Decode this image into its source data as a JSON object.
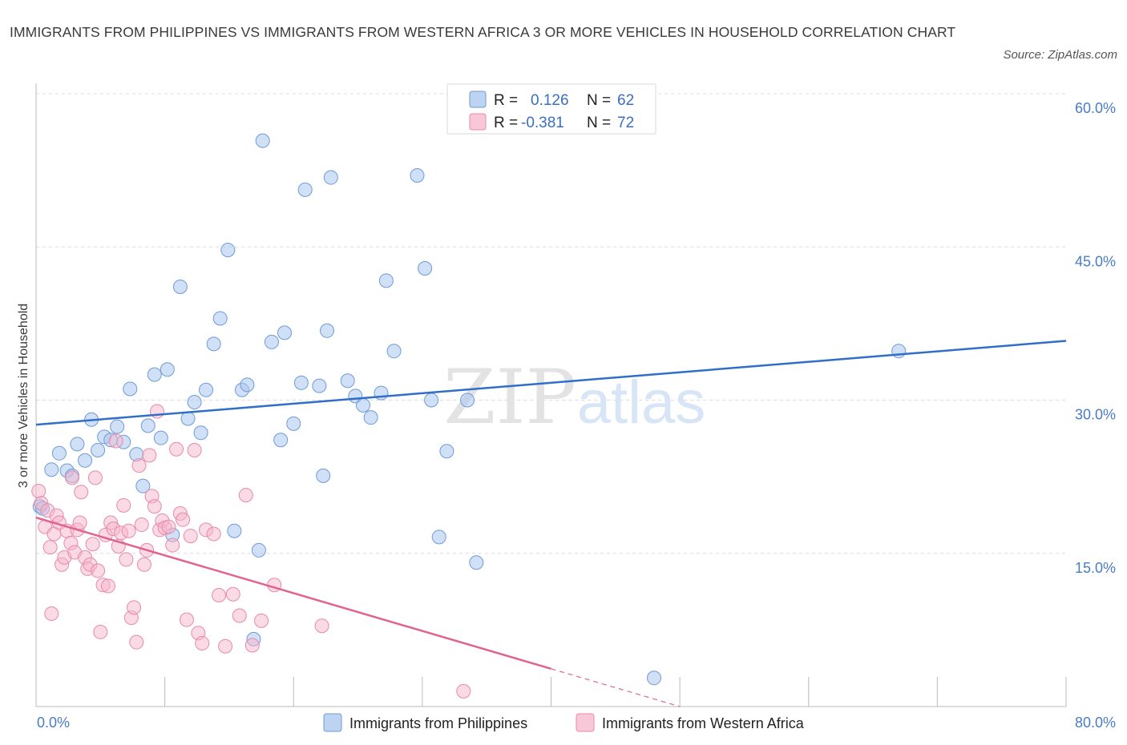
{
  "title": "IMMIGRANTS FROM PHILIPPINES VS IMMIGRANTS FROM WESTERN AFRICA 3 OR MORE VEHICLES IN HOUSEHOLD CORRELATION CHART",
  "source": "Source: ZipAtlas.com",
  "watermark": {
    "zip": "ZIP",
    "atlas": "atlas"
  },
  "legend": {
    "rows": [
      {
        "r_label": "R =",
        "r_value": "0.126",
        "n_label": "N =",
        "n_value": "62"
      },
      {
        "r_label": "R =",
        "r_value": "-0.381",
        "n_label": "N =",
        "n_value": "72"
      }
    ]
  },
  "colors": {
    "blue_fill": "#a9c6ee",
    "blue_stroke": "#6f9bd8",
    "blue_line": "#2f6fc8",
    "pink_fill": "#f6b6cb",
    "pink_stroke": "#e88aa8",
    "pink_line": "#e0648f",
    "tick_text": "#4a7cc4",
    "grid": "#dcdcdc"
  },
  "chart_data": {
    "type": "scatter",
    "title": "IMMIGRANTS FROM PHILIPPINES VS IMMIGRANTS FROM WESTERN AFRICA 3 OR MORE VEHICLES IN HOUSEHOLD CORRELATION CHART",
    "xlabel": "",
    "ylabel": "3 or more Vehicles in Household",
    "xlim": [
      0,
      80
    ],
    "ylim": [
      0,
      60
    ],
    "x_tick_labels": [
      "0.0%",
      "80.0%"
    ],
    "y_ticks": [
      15,
      30,
      45,
      60
    ],
    "y_tick_labels": [
      "15.0%",
      "30.0%",
      "45.0%",
      "60.0%"
    ],
    "grid": true,
    "legend_position": "bottom-center",
    "series": [
      {
        "name": "Immigrants from Philippines",
        "color": "#6f9bd8",
        "trend": {
          "x": [
            0,
            80
          ],
          "y": [
            27.6,
            35.8
          ]
        },
        "points": [
          [
            0.3,
            19.6
          ],
          [
            0.5,
            19.4
          ],
          [
            1.2,
            23.2
          ],
          [
            1.8,
            24.8
          ],
          [
            2.4,
            23.1
          ],
          [
            2.8,
            22.6
          ],
          [
            3.2,
            25.7
          ],
          [
            3.8,
            24.1
          ],
          [
            4.3,
            28.1
          ],
          [
            4.8,
            25.1
          ],
          [
            5.3,
            26.4
          ],
          [
            5.8,
            26.1
          ],
          [
            6.3,
            27.4
          ],
          [
            6.8,
            25.9
          ],
          [
            7.3,
            31.1
          ],
          [
            7.8,
            24.7
          ],
          [
            8.3,
            21.6
          ],
          [
            8.7,
            27.5
          ],
          [
            9.2,
            32.5
          ],
          [
            9.7,
            26.3
          ],
          [
            10.2,
            33.0
          ],
          [
            10.6,
            16.8
          ],
          [
            11.2,
            41.1
          ],
          [
            11.8,
            28.2
          ],
          [
            12.3,
            29.8
          ],
          [
            12.8,
            26.8
          ],
          [
            13.2,
            31.0
          ],
          [
            13.8,
            35.5
          ],
          [
            14.3,
            38.0
          ],
          [
            14.9,
            44.7
          ],
          [
            15.4,
            17.2
          ],
          [
            16.0,
            31.0
          ],
          [
            16.4,
            31.5
          ],
          [
            16.9,
            6.6
          ],
          [
            17.3,
            15.3
          ],
          [
            17.6,
            55.4
          ],
          [
            18.3,
            35.7
          ],
          [
            19.0,
            26.1
          ],
          [
            19.3,
            36.6
          ],
          [
            20.0,
            27.7
          ],
          [
            20.6,
            31.7
          ],
          [
            20.9,
            50.6
          ],
          [
            22.0,
            31.4
          ],
          [
            22.3,
            22.6
          ],
          [
            22.6,
            36.8
          ],
          [
            22.9,
            51.8
          ],
          [
            24.2,
            31.9
          ],
          [
            24.8,
            30.4
          ],
          [
            25.4,
            29.5
          ],
          [
            26.0,
            28.3
          ],
          [
            26.8,
            30.7
          ],
          [
            27.2,
            41.7
          ],
          [
            27.8,
            34.8
          ],
          [
            29.6,
            52.0
          ],
          [
            30.2,
            42.9
          ],
          [
            30.7,
            30.0
          ],
          [
            31.3,
            16.6
          ],
          [
            31.9,
            25.0
          ],
          [
            33.5,
            30.0
          ],
          [
            34.2,
            14.1
          ],
          [
            48.0,
            2.8
          ],
          [
            67.0,
            34.8
          ]
        ]
      },
      {
        "name": "Immigrants from Western Africa",
        "color": "#e88aa8",
        "trend": {
          "x": [
            0,
            40
          ],
          "y": [
            18.5,
            3.7
          ]
        },
        "trend_dashed": {
          "x": [
            40,
            50
          ],
          "y": [
            3.7,
            0
          ]
        },
        "points": [
          [
            0.2,
            21.1
          ],
          [
            0.4,
            19.9
          ],
          [
            0.7,
            17.6
          ],
          [
            0.9,
            19.2
          ],
          [
            1.1,
            15.6
          ],
          [
            1.2,
            9.1
          ],
          [
            1.4,
            16.9
          ],
          [
            1.6,
            18.7
          ],
          [
            1.8,
            18.0
          ],
          [
            2.0,
            13.9
          ],
          [
            2.2,
            14.6
          ],
          [
            2.4,
            17.2
          ],
          [
            2.7,
            16.0
          ],
          [
            2.8,
            22.4
          ],
          [
            3.0,
            15.1
          ],
          [
            3.2,
            17.3
          ],
          [
            3.4,
            18.0
          ],
          [
            3.5,
            21.0
          ],
          [
            3.8,
            14.6
          ],
          [
            4.0,
            13.5
          ],
          [
            4.2,
            13.9
          ],
          [
            4.4,
            15.9
          ],
          [
            4.6,
            22.4
          ],
          [
            4.8,
            13.3
          ],
          [
            5.0,
            7.3
          ],
          [
            5.2,
            11.9
          ],
          [
            5.4,
            16.8
          ],
          [
            5.6,
            11.8
          ],
          [
            5.8,
            18.0
          ],
          [
            6.0,
            17.4
          ],
          [
            6.2,
            26.0
          ],
          [
            6.4,
            15.7
          ],
          [
            6.6,
            17.0
          ],
          [
            6.8,
            19.7
          ],
          [
            7.0,
            14.4
          ],
          [
            7.2,
            17.2
          ],
          [
            7.4,
            8.7
          ],
          [
            7.6,
            9.7
          ],
          [
            7.8,
            6.3
          ],
          [
            8.0,
            23.6
          ],
          [
            8.2,
            17.8
          ],
          [
            8.4,
            13.9
          ],
          [
            8.6,
            15.3
          ],
          [
            8.8,
            24.6
          ],
          [
            9.0,
            20.6
          ],
          [
            9.2,
            19.6
          ],
          [
            9.4,
            28.9
          ],
          [
            9.6,
            17.3
          ],
          [
            9.8,
            18.2
          ],
          [
            10.0,
            17.5
          ],
          [
            10.3,
            17.6
          ],
          [
            10.6,
            15.8
          ],
          [
            10.9,
            25.2
          ],
          [
            11.2,
            18.9
          ],
          [
            11.4,
            18.3
          ],
          [
            11.7,
            8.5
          ],
          [
            12.0,
            16.7
          ],
          [
            12.3,
            25.1
          ],
          [
            12.6,
            7.2
          ],
          [
            12.9,
            6.2
          ],
          [
            13.2,
            17.3
          ],
          [
            13.8,
            16.9
          ],
          [
            14.2,
            10.9
          ],
          [
            14.7,
            5.9
          ],
          [
            15.3,
            11.0
          ],
          [
            15.8,
            8.9
          ],
          [
            16.3,
            20.7
          ],
          [
            16.8,
            6.0
          ],
          [
            17.5,
            8.4
          ],
          [
            18.5,
            11.9
          ],
          [
            22.2,
            7.9
          ],
          [
            33.2,
            1.5
          ]
        ]
      }
    ]
  }
}
